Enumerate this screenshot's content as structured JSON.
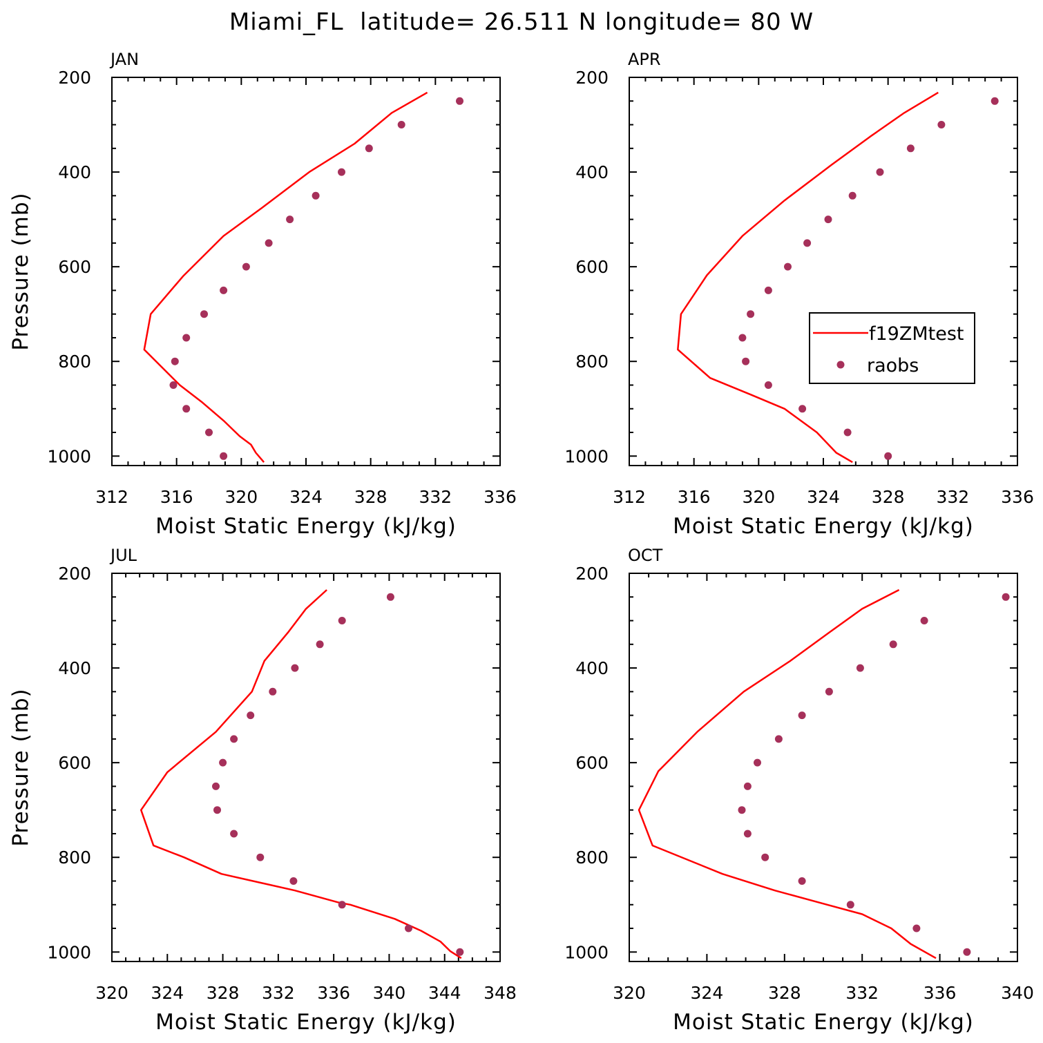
{
  "page_title": "Miami_FL  latitude= 26.511 N longitude= 80 W",
  "colors": {
    "model_line": "#ff0000",
    "obs_marker": "#a6305a",
    "axis": "#000000"
  },
  "legend": {
    "location": "panel APR, right-center",
    "entries": [
      {
        "label": "f19ZMtest",
        "symbol": "line",
        "color": "#ff0000"
      },
      {
        "label": "raobs",
        "symbol": "dot",
        "color": "#a6305a"
      }
    ]
  },
  "chart_data": [
    {
      "type": "line",
      "panel_label": "JAN",
      "xlabel": "Moist Static Energy (kJ/kg)",
      "ylabel": "Pressure (mb)",
      "xlim": [
        312,
        336
      ],
      "xticks": [
        312,
        316,
        320,
        324,
        328,
        332,
        336
      ],
      "ylim": [
        200,
        1020
      ],
      "yticks": [
        200,
        400,
        600,
        800,
        1000
      ],
      "y_inverted": true,
      "series": [
        {
          "name": "f19ZMtest",
          "kind": "line",
          "x": [
            321.4,
            320.9,
            320.6,
            319.9,
            318.9,
            317.6,
            316.2,
            314.0,
            314.4,
            316.4,
            318.9,
            321.3,
            324.2,
            327.0,
            329.3,
            331.5
          ],
          "y": [
            1013,
            993,
            976,
            958,
            925,
            887,
            850,
            775,
            700,
            620,
            535,
            475,
            400,
            340,
            275,
            232
          ]
        },
        {
          "name": "raobs",
          "kind": "scatter",
          "x": [
            318.9,
            318.0,
            316.6,
            315.8,
            315.9,
            316.6,
            317.7,
            318.9,
            320.3,
            321.7,
            323.0,
            324.6,
            326.2,
            327.9,
            329.9,
            333.5
          ],
          "y": [
            1000,
            950,
            900,
            850,
            800,
            750,
            700,
            650,
            600,
            550,
            500,
            450,
            400,
            350,
            300,
            250
          ]
        }
      ]
    },
    {
      "type": "line",
      "panel_label": "APR",
      "xlabel": "Moist Static Energy (kJ/kg)",
      "ylabel": "",
      "xlim": [
        312,
        336
      ],
      "xticks": [
        312,
        316,
        320,
        324,
        328,
        332,
        336
      ],
      "ylim": [
        200,
        1020
      ],
      "yticks": [
        200,
        400,
        600,
        800,
        1000
      ],
      "y_inverted": true,
      "series": [
        {
          "name": "f19ZMtest",
          "kind": "line",
          "x": [
            325.8,
            324.8,
            323.6,
            322.6,
            321.6,
            319.5,
            317.0,
            315.0,
            315.2,
            316.8,
            319.0,
            321.6,
            324.5,
            326.9,
            329.0,
            331.1
          ],
          "y": [
            1013,
            993,
            950,
            925,
            900,
            870,
            835,
            775,
            700,
            618,
            535,
            460,
            385,
            325,
            275,
            232
          ]
        },
        {
          "name": "raobs",
          "kind": "scatter",
          "x": [
            328.0,
            325.5,
            322.7,
            320.6,
            319.2,
            319.0,
            319.5,
            320.6,
            321.8,
            323.0,
            324.3,
            325.8,
            327.5,
            329.4,
            331.3,
            334.6
          ],
          "y": [
            1000,
            950,
            900,
            850,
            800,
            750,
            700,
            650,
            600,
            550,
            500,
            450,
            400,
            350,
            300,
            250
          ]
        }
      ]
    },
    {
      "type": "line",
      "panel_label": "JUL",
      "xlabel": "Moist Static Energy (kJ/kg)",
      "ylabel": "Pressure (mb)",
      "xlim": [
        320,
        348
      ],
      "xticks": [
        320,
        324,
        328,
        332,
        336,
        340,
        344,
        348
      ],
      "ylim": [
        200,
        1020
      ],
      "yticks": [
        200,
        400,
        600,
        800,
        1000
      ],
      "y_inverted": true,
      "series": [
        {
          "name": "f19ZMtest",
          "kind": "line",
          "x": [
            345.2,
            344.4,
            343.7,
            342.3,
            340.4,
            337.2,
            336.3,
            333.2,
            327.9,
            325.2,
            323.0,
            322.1,
            324.0,
            327.5,
            330.1,
            331.0,
            332.7,
            334.0,
            335.5
          ],
          "y": [
            1013,
            998,
            978,
            955,
            930,
            900,
            895,
            870,
            835,
            800,
            775,
            700,
            620,
            535,
            450,
            385,
            325,
            275,
            235
          ]
        },
        {
          "name": "raobs",
          "kind": "scatter",
          "x": [
            345.1,
            341.4,
            336.6,
            333.1,
            330.7,
            328.8,
            327.6,
            327.5,
            328.0,
            328.8,
            330.0,
            331.6,
            333.2,
            335.0,
            336.6,
            340.1
          ],
          "y": [
            1000,
            950,
            900,
            850,
            800,
            750,
            700,
            650,
            600,
            550,
            500,
            450,
            400,
            350,
            300,
            250
          ]
        }
      ]
    },
    {
      "type": "line",
      "panel_label": "OCT",
      "xlabel": "Moist Static Energy (kJ/kg)",
      "ylabel": "",
      "xlim": [
        320,
        340
      ],
      "xticks": [
        320,
        324,
        328,
        332,
        336,
        340
      ],
      "ylim": [
        200,
        1020
      ],
      "yticks": [
        200,
        400,
        600,
        800,
        1000
      ],
      "y_inverted": true,
      "series": [
        {
          "name": "f19ZMtest",
          "kind": "line",
          "x": [
            335.8,
            334.5,
            333.5,
            332.0,
            330.2,
            327.5,
            324.8,
            321.2,
            320.5,
            321.5,
            323.5,
            325.9,
            328.3,
            330.3,
            332.0,
            333.9
          ],
          "y": [
            1013,
            983,
            950,
            920,
            900,
            870,
            835,
            775,
            700,
            618,
            535,
            450,
            385,
            325,
            275,
            235
          ]
        },
        {
          "name": "raobs",
          "kind": "scatter",
          "x": [
            337.4,
            334.8,
            331.4,
            328.9,
            327.0,
            326.1,
            325.8,
            326.1,
            326.6,
            327.7,
            328.9,
            330.3,
            331.9,
            333.6,
            335.2,
            339.4
          ],
          "y": [
            1000,
            950,
            900,
            850,
            800,
            750,
            700,
            650,
            600,
            550,
            500,
            450,
            400,
            350,
            300,
            250
          ]
        }
      ]
    }
  ]
}
